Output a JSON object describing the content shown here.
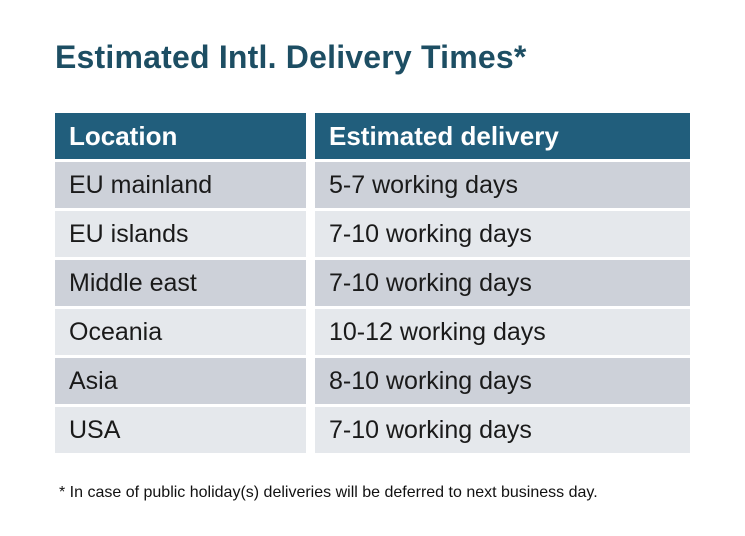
{
  "page": {
    "title": "Estimated Intl. Delivery Times*",
    "footnote": "* In case of public holiday(s) deliveries will be deferred to next business day."
  },
  "table": {
    "columns": [
      "Location",
      "Estimated delivery"
    ],
    "rows": [
      {
        "location": "EU mainland",
        "delivery": "5-7 working days"
      },
      {
        "location": "EU islands",
        "delivery": "7-10 working days"
      },
      {
        "location": "Middle east",
        "delivery": "7-10 working days"
      },
      {
        "location": "Oceania",
        "delivery": "10-12 working days"
      },
      {
        "location": "Asia",
        "delivery": "8-10 working days"
      },
      {
        "location": "USA",
        "delivery": "7-10 working days"
      }
    ]
  },
  "colors": {
    "page_bg": "#ffffff",
    "title": "#1d4e63",
    "header_bg": "#215e7c",
    "header_text": "#ffffff",
    "row_odd_bg": "#cdd1d9",
    "row_even_bg": "#e5e8ec",
    "cell_text": "#1a1a1a",
    "footnote_text": "#111111"
  }
}
